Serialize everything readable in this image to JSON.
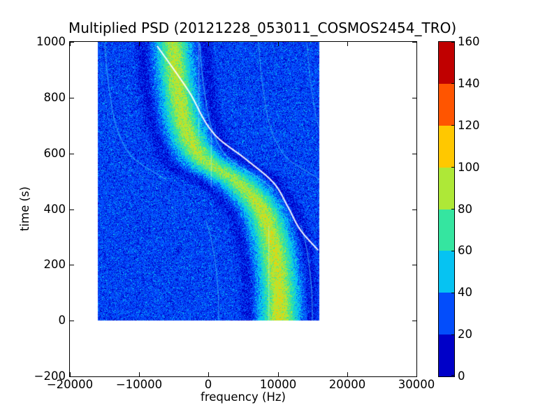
{
  "chart_data": {
    "type": "heatmap",
    "title": "Multiplied PSD (20121228_053011_COSMOS2454_TRO)",
    "xlabel": "frequency (Hz)",
    "ylabel": "time (s)",
    "xlim": [
      -20000,
      30000
    ],
    "ylim": [
      -200,
      1000
    ],
    "grid": false,
    "x_ticks": {
      "values": [
        -20000,
        -10000,
        0,
        10000,
        20000,
        30000
      ],
      "labels": [
        "−20000",
        "−10000",
        "0",
        "10000",
        "20000",
        "30000"
      ]
    },
    "y_ticks": {
      "values": [
        -200,
        0,
        200,
        400,
        600,
        800,
        1000
      ],
      "labels": [
        "−200",
        "0",
        "200",
        "400",
        "600",
        "800",
        "1000"
      ]
    },
    "data_extent": {
      "freq_hz": [
        -16000,
        16000
      ],
      "time_s": [
        0,
        1000
      ]
    },
    "colormap": {
      "name": "jet-discrete-8",
      "levels": [
        0,
        20,
        40,
        60,
        80,
        100,
        120,
        140,
        160
      ],
      "colors": [
        "#0000C8",
        "#034DFB",
        "#06C3F2",
        "#35E5A0",
        "#AEE837",
        "#FFC800",
        "#FF5500",
        "#C00000"
      ]
    },
    "colorbar": {
      "range": [
        0,
        160
      ],
      "tick_values": [
        0,
        20,
        40,
        60,
        80,
        100,
        120,
        140,
        160
      ],
      "tick_labels": [
        "0",
        "20",
        "40",
        "60",
        "80",
        "100",
        "120",
        "140",
        "160"
      ]
    },
    "background_noise": {
      "mean": 27,
      "sigma": 8.5
    },
    "doppler_band": {
      "description": "satellite Doppler S-curve power band",
      "center_track_t_f": [
        [
          0,
          10300
        ],
        [
          136,
          10100
        ],
        [
          328,
          8800
        ],
        [
          411,
          7400
        ],
        [
          494,
          4400
        ],
        [
          580,
          -800
        ],
        [
          662,
          -2900
        ],
        [
          825,
          -4400
        ],
        [
          1000,
          -5100
        ]
      ],
      "sigma_hz_top_bottom": [
        1550,
        1800
      ],
      "peak_value_top_bottom": [
        63,
        69
      ],
      "edge_dip_center_hz": 4500,
      "edge_dip_depth": 12
    },
    "white_track_t_f": [
      [
        253,
        15800
      ],
      [
        324,
        13300
      ],
      [
        411,
        11400
      ],
      [
        494,
        9400
      ],
      [
        579,
        5400
      ],
      [
        662,
        1100
      ],
      [
        825,
        -2900
      ],
      [
        987,
        -7450
      ]
    ],
    "ghost_arcs": [
      {
        "offset_hz": -9900,
        "t_range": [
          505,
          1000
        ],
        "alpha": 0.55
      },
      {
        "offset_hz": -10700,
        "t_range": [
          630,
          1000
        ],
        "alpha": 0.3
      },
      {
        "offset_hz": -8800,
        "t_range": [
          0,
          360
        ],
        "alpha": 0.5
      },
      {
        "offset_hz": -12700,
        "t_range": [
          380,
          575
        ],
        "alpha": 0.3
      },
      {
        "offset_hz": 3800,
        "t_range": [
          465,
          1000
        ],
        "alpha": 0.65
      },
      {
        "offset_hz": 4700,
        "t_range": [
          0,
          345
        ],
        "alpha": 0.6
      },
      {
        "offset_hz": 12300,
        "t_range": [
          425,
          1000
        ],
        "alpha": 0.5
      },
      {
        "offset_hz": 19300,
        "t_range": [
          555,
          1000
        ],
        "alpha": 0.45
      }
    ],
    "vertical_streaks": [
      {
        "freq_hz": -1400,
        "t_range": [
          660,
          1000
        ]
      },
      {
        "freq_hz": 400,
        "t_range": [
          480,
          680
        ]
      },
      {
        "freq_hz": 8700,
        "t_range": [
          0,
          340
        ]
      }
    ]
  }
}
